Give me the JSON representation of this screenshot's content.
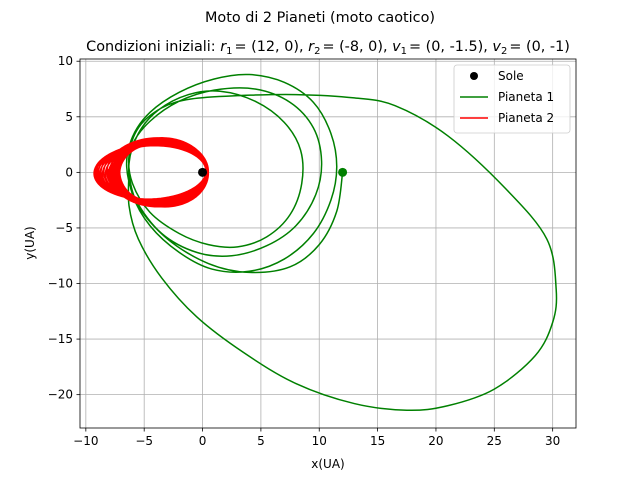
{
  "chart_data": {
    "type": "line",
    "suptitle": "Moto di 2 Pianeti (moto caotico)",
    "title": {
      "prefix": "Condizioni iniziali: ",
      "r1": "= (12, 0), ",
      "r2": "= (-8, 0), ",
      "v1": "= (0, -1.5), ",
      "v2": "= (0, -1)"
    },
    "xlabel": "x(UA)",
    "ylabel": "y(UA)",
    "xlim": [
      -10.5,
      32
    ],
    "ylim": [
      -23,
      10.2
    ],
    "xticks": [
      -10,
      -5,
      0,
      5,
      10,
      15,
      20,
      25,
      30
    ],
    "yticks": [
      -20,
      -15,
      -10,
      -5,
      0,
      5,
      10
    ],
    "grid": true,
    "legend_position": "top-right",
    "sun": {
      "name": "Sole",
      "x": 0,
      "y": 0,
      "color": "#000000"
    },
    "series": [
      {
        "name": "Pianeta 1",
        "color": "#008000",
        "start": {
          "x": 12,
          "y": 0
        },
        "points": [
          [
            12,
            0
          ],
          [
            11.5,
            -3.5
          ],
          [
            10,
            -6.5
          ],
          [
            7.5,
            -8.5
          ],
          [
            4,
            -9
          ],
          [
            0.5,
            -8.2
          ],
          [
            -3,
            -6
          ],
          [
            -5.5,
            -3
          ],
          [
            -6.3,
            0
          ],
          [
            -6,
            2.5
          ],
          [
            -4.5,
            4.6
          ],
          [
            -2,
            6.4
          ],
          [
            1,
            7.4
          ],
          [
            4.5,
            7.5
          ],
          [
            7.5,
            6.3
          ],
          [
            9.5,
            4
          ],
          [
            10.2,
            1
          ],
          [
            9.7,
            -2
          ],
          [
            8,
            -4.8
          ],
          [
            5.5,
            -6.6
          ],
          [
            2.5,
            -7.5
          ],
          [
            -0.5,
            -7.2
          ],
          [
            -3.5,
            -5.5
          ],
          [
            -5.7,
            -2.5
          ],
          [
            -6.5,
            0.5
          ],
          [
            -6,
            3.2
          ],
          [
            -4.5,
            5.4
          ],
          [
            -2,
            7.2
          ],
          [
            1,
            8.4
          ],
          [
            4,
            8.8
          ],
          [
            7,
            8.1
          ],
          [
            9.5,
            6.3
          ],
          [
            11,
            3.5
          ],
          [
            11.5,
            0.5
          ],
          [
            11,
            -2.5
          ],
          [
            9.5,
            -5.5
          ],
          [
            7,
            -7.8
          ],
          [
            4,
            -8.9
          ],
          [
            0.8,
            -8.7
          ],
          [
            -2,
            -7.2
          ],
          [
            -4.5,
            -4.8
          ],
          [
            -6,
            -2
          ],
          [
            -6.3,
            0.8
          ],
          [
            -5.5,
            3.5
          ],
          [
            -3.8,
            5.6
          ],
          [
            -1.2,
            7
          ],
          [
            1.5,
            7.3
          ],
          [
            4.5,
            6.4
          ],
          [
            7,
            4.5
          ],
          [
            8.4,
            2
          ],
          [
            8.5,
            -1
          ],
          [
            7.5,
            -3.8
          ],
          [
            5.5,
            -5.8
          ],
          [
            3,
            -6.7
          ],
          [
            0.5,
            -6.5
          ],
          [
            -2,
            -5.5
          ],
          [
            -4.5,
            -3.6
          ],
          [
            -6,
            -1
          ],
          [
            -6.3,
            1.5
          ],
          [
            -5.5,
            4
          ],
          [
            -3.5,
            5.8
          ],
          [
            -1,
            6.6
          ],
          [
            3,
            6.9
          ],
          [
            8,
            7
          ],
          [
            13,
            6.7
          ],
          [
            16.5,
            6
          ],
          [
            21,
            3.3
          ],
          [
            26,
            -1.5
          ],
          [
            29.5,
            -6
          ],
          [
            30.3,
            -10.5
          ],
          [
            30,
            -13.5
          ],
          [
            28.5,
            -16.5
          ],
          [
            25,
            -19.5
          ],
          [
            21,
            -21
          ],
          [
            17.5,
            -21.4
          ],
          [
            13,
            -20.8
          ],
          [
            8,
            -19
          ],
          [
            3.5,
            -16.2
          ],
          [
            -0.5,
            -13
          ],
          [
            -3.5,
            -9.5
          ],
          [
            -5.5,
            -6
          ],
          [
            -6.3,
            -3
          ],
          [
            -6.3,
            0
          ]
        ]
      },
      {
        "name": "Pianeta 2",
        "color": "#ff0000",
        "start": {
          "x": -8,
          "y": 0
        },
        "orbit": {
          "center_x_range": [
            -4.5,
            -3.3
          ],
          "semi_axis_x_range": [
            3.8,
            4.8
          ],
          "semi_axis_y_range": [
            2.4,
            3.1
          ],
          "revolutions": 40
        }
      }
    ]
  }
}
